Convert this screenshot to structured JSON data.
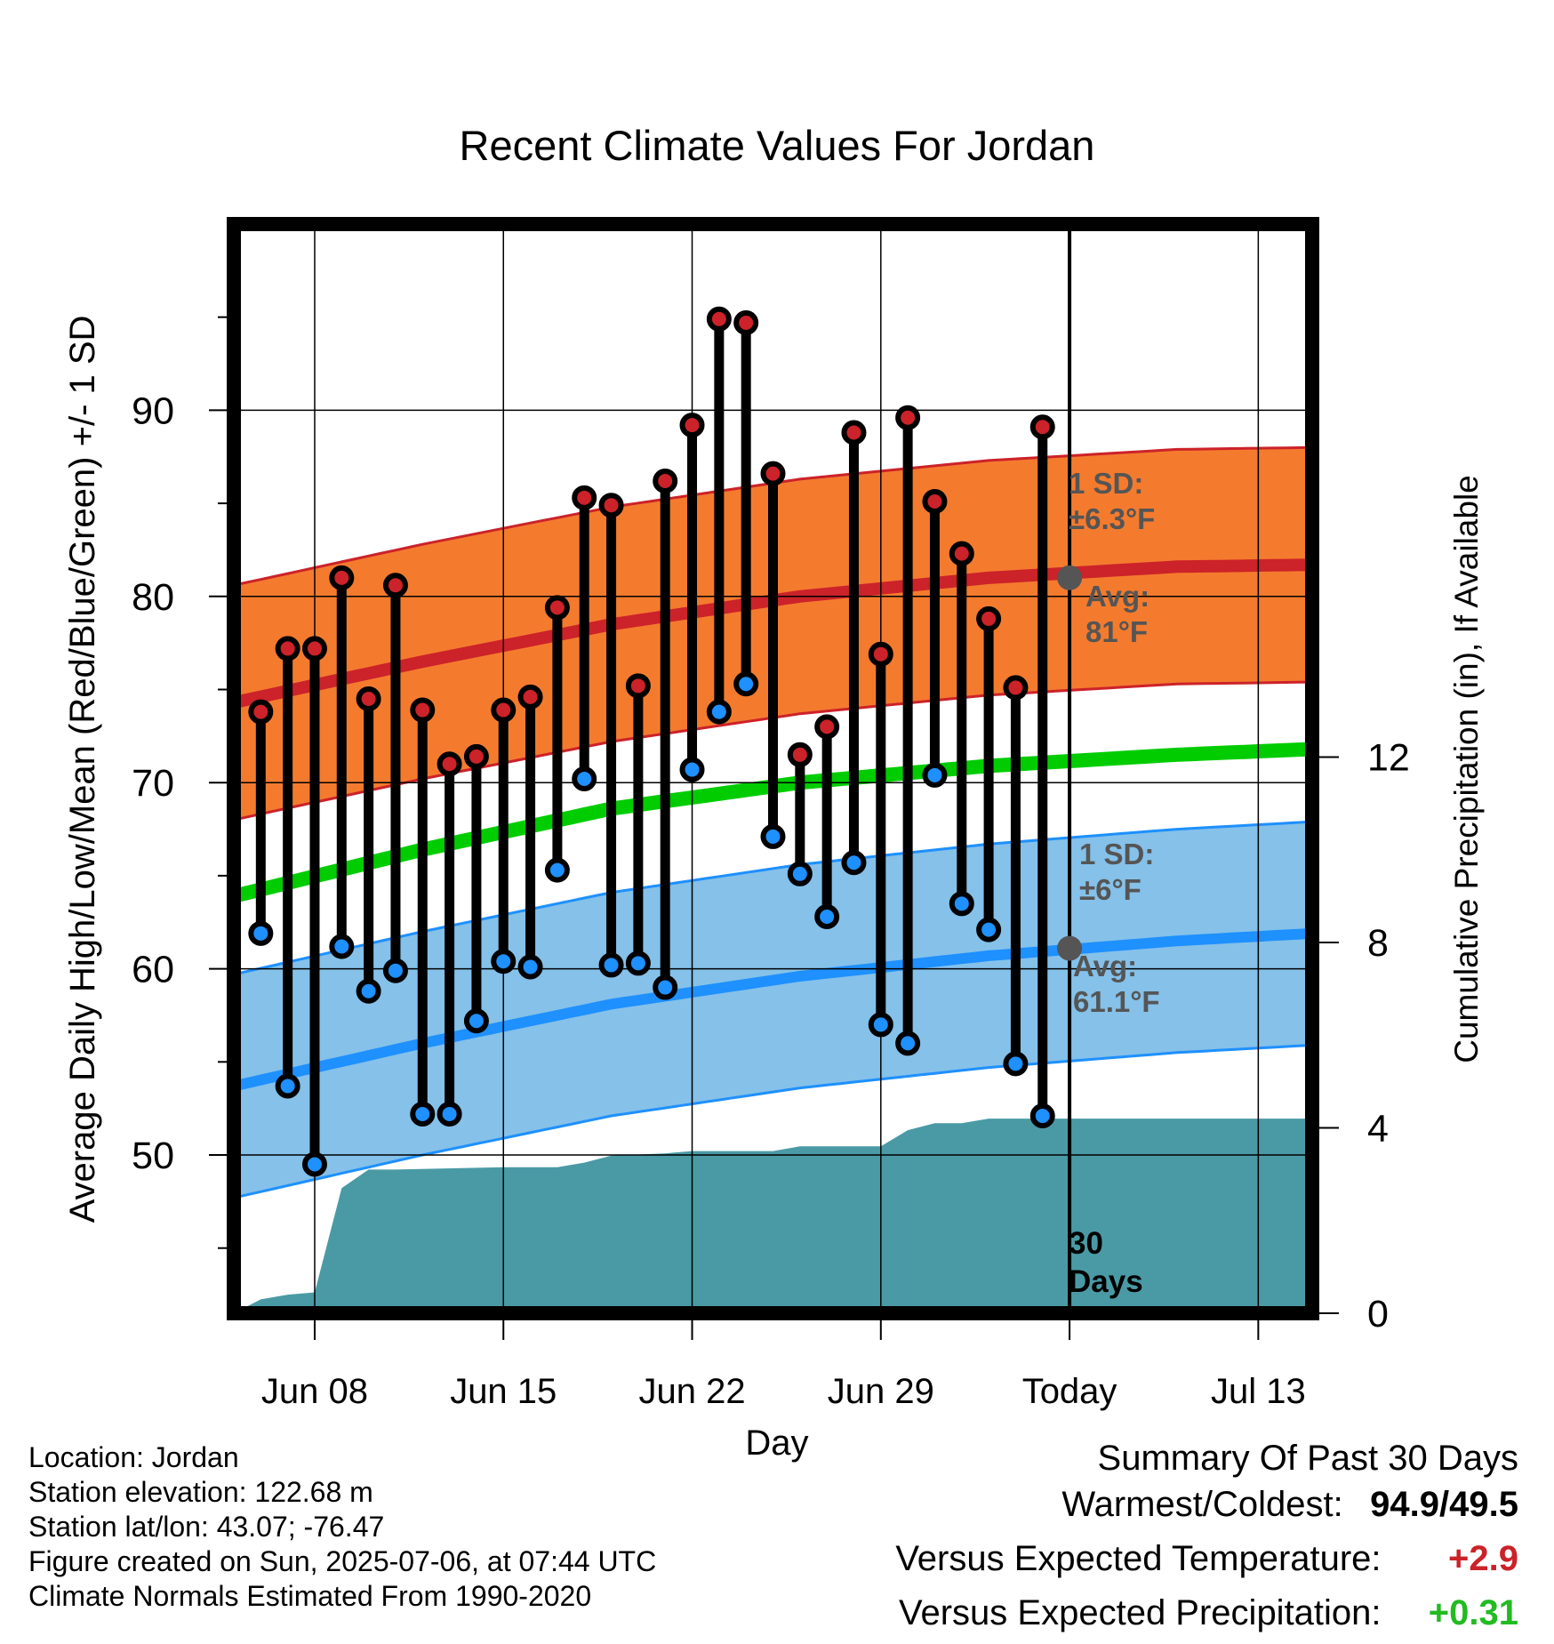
{
  "chart_data": {
    "type": "line",
    "title": "Recent Climate Values For Jordan",
    "xlabel": "Day",
    "ylabel": "Average Daily High/Low/Mean (Red/Blue/Green) +/- 1 SD",
    "y2label": "Cumulative Precipitation (in), If Available",
    "x_ticks": [
      "Jun 08",
      "Jun 15",
      "Jun 22",
      "Jun 29",
      "Today",
      "Jul 13"
    ],
    "x_tick_dates": [
      "2025-06-08",
      "2025-06-15",
      "2025-06-22",
      "2025-06-29",
      "2025-07-06",
      "2025-07-13"
    ],
    "xlim": [
      "2025-06-05",
      "2025-07-15"
    ],
    "ylim": [
      41.5,
      100
    ],
    "y_ticks": [
      50,
      60,
      70,
      80,
      90
    ],
    "y2lim": [
      0,
      23.5
    ],
    "y2_ticks": [
      0,
      4,
      8,
      12
    ],
    "today": "2025-07-06",
    "today_label": "30\nDays",
    "grid": true,
    "colors": {
      "high": "#cc2229",
      "low": "#1e90ff",
      "mean": "#00cc00",
      "high_band": "#f47b2e",
      "low_band": "#85c1e9",
      "precip": "#4a9aa5",
      "avg_marker": "#555555"
    },
    "daily_dates": [
      "2025-06-06",
      "2025-06-07",
      "2025-06-08",
      "2025-06-09",
      "2025-06-10",
      "2025-06-11",
      "2025-06-12",
      "2025-06-13",
      "2025-06-14",
      "2025-06-15",
      "2025-06-16",
      "2025-06-17",
      "2025-06-18",
      "2025-06-19",
      "2025-06-20",
      "2025-06-21",
      "2025-06-22",
      "2025-06-23",
      "2025-06-24",
      "2025-06-25",
      "2025-06-26",
      "2025-06-27",
      "2025-06-28",
      "2025-06-29",
      "2025-06-30",
      "2025-07-01",
      "2025-07-02",
      "2025-07-03",
      "2025-07-04",
      "2025-07-05"
    ],
    "daily_high": [
      73.8,
      77.2,
      77.2,
      81.0,
      74.5,
      80.6,
      73.9,
      71.0,
      71.4,
      73.9,
      74.6,
      79.4,
      85.3,
      84.9,
      75.2,
      86.2,
      89.2,
      94.9,
      94.7,
      86.6,
      71.5,
      73.0,
      88.8,
      76.9,
      89.6,
      85.1,
      82.3,
      78.8,
      75.1,
      89.1
    ],
    "daily_low": [
      61.9,
      53.7,
      49.5,
      61.2,
      58.8,
      59.9,
      52.2,
      52.2,
      57.2,
      60.4,
      60.1,
      65.3,
      70.2,
      60.2,
      60.3,
      59.0,
      70.7,
      73.8,
      75.3,
      67.1,
      65.1,
      62.8,
      65.7,
      57.0,
      56.0,
      70.4,
      63.5,
      62.1,
      54.9,
      52.1
    ],
    "normal_dates": [
      "2025-06-05",
      "2025-06-12",
      "2025-06-19",
      "2025-06-26",
      "2025-07-03",
      "2025-07-10",
      "2025-07-15"
    ],
    "normal_high": [
      74.3,
      76.5,
      78.5,
      80.0,
      81.0,
      81.6,
      81.7
    ],
    "normal_low": [
      53.7,
      56.0,
      58.1,
      59.6,
      60.7,
      61.5,
      61.9
    ],
    "normal_mean": [
      63.9,
      66.4,
      68.6,
      70.0,
      70.9,
      71.5,
      71.8
    ],
    "high_sd": 6.3,
    "low_sd": 6.0,
    "cumulative_precip_dates": [
      "2025-06-05",
      "2025-06-06",
      "2025-06-07",
      "2025-06-08",
      "2025-06-09",
      "2025-06-10",
      "2025-06-11",
      "2025-06-15",
      "2025-06-17",
      "2025-06-18",
      "2025-06-19",
      "2025-06-21",
      "2025-06-22",
      "2025-06-25",
      "2025-06-26",
      "2025-06-29",
      "2025-06-30",
      "2025-07-01",
      "2025-07-02",
      "2025-07-03",
      "2025-07-15"
    ],
    "cumulative_precip": [
      0.0,
      0.3,
      0.4,
      0.45,
      2.7,
      3.1,
      3.1,
      3.15,
      3.15,
      3.25,
      3.4,
      3.45,
      3.5,
      3.5,
      3.6,
      3.6,
      3.95,
      4.1,
      4.1,
      4.2,
      4.2
    ],
    "annotations": {
      "high_sd_label": "1 SD:",
      "high_sd_value": "±6.3°F",
      "high_avg_label": "Avg:",
      "high_avg_value": "81°F",
      "low_sd_label": "1 SD:",
      "low_sd_value": "±6°F",
      "low_avg_label": "Avg:",
      "low_avg_value": "61.1°F",
      "high_avg": 81.0,
      "low_avg": 61.1
    }
  },
  "footer": {
    "location": "Location: Jordan",
    "elevation": "Station elevation: 122.68 m",
    "latlon": "Station lat/lon: 43.07; -76.47",
    "created": "Figure created on Sun, 2025-07-06, at 07:44 UTC",
    "normals": "Climate Normals Estimated From 1990-2020"
  },
  "summary": {
    "heading": "Summary Of Past 30 Days",
    "warm_cold_label": "Warmest/Coldest:",
    "warm_cold_value": "94.9/49.5",
    "temp_label": "Versus Expected Temperature:",
    "temp_value": "+2.9",
    "temp_color": "#cc2229",
    "precip_label": "Versus Expected Precipitation:",
    "precip_value": "+0.31",
    "precip_color": "#22bb22"
  }
}
